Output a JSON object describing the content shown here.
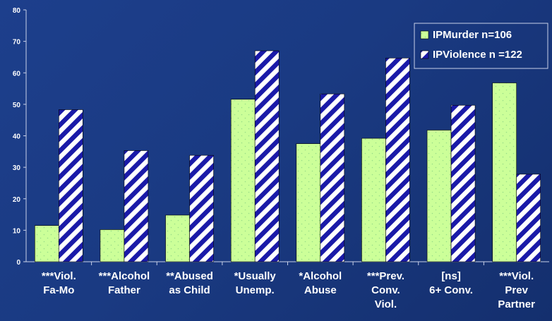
{
  "chart_data": {
    "type": "bar",
    "categories": [
      [
        "***Viol.",
        "Fa-Mo"
      ],
      [
        "***Alcohol",
        "Father"
      ],
      [
        "**Abused",
        "as Child"
      ],
      [
        "*Usually",
        "Unemp."
      ],
      [
        "*Alcohol",
        "Abuse"
      ],
      [
        "***Prev.",
        "Conv.",
        "Viol."
      ],
      [
        "[ns]",
        "6+ Conv."
      ],
      [
        "***Viol.",
        "Prev",
        "Partner"
      ]
    ],
    "series": [
      {
        "name": "IPMurder n=106",
        "values": [
          11.5,
          10.2,
          14.8,
          51.6,
          37.5,
          39.2,
          41.8,
          56.8
        ]
      },
      {
        "name": "IPViolence n =122",
        "values": [
          48.3,
          35.3,
          33.8,
          67,
          53.3,
          64.7,
          49.7,
          27.8
        ]
      }
    ],
    "y_ticks": [
      "0",
      "10",
      "20",
      "30",
      "40",
      "50",
      "60",
      "70",
      "80"
    ],
    "ylim": [
      0,
      80
    ],
    "grid": false,
    "legend_position": "top-right",
    "colors": {
      "murder_fill": "#ccff99",
      "murder_dots": "#99dd88",
      "violence_stripe": "#1a1aa8",
      "violence_bg": "#ffffff",
      "text": "#ffffff",
      "axis": "#c8d0e8"
    }
  }
}
